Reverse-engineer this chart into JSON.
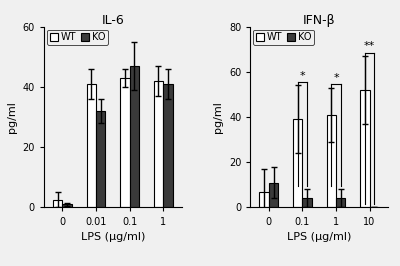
{
  "il6": {
    "title": "IL-6",
    "xlabel": "LPS (μg/ml)",
    "ylabel": "pg/ml",
    "xtick_labels": [
      "0",
      "0.01",
      "0.1",
      "1"
    ],
    "ylim": [
      0,
      60
    ],
    "yticks": [
      0,
      20,
      40,
      60
    ],
    "wt_values": [
      2.5,
      41,
      43,
      42
    ],
    "ko_values": [
      1.0,
      32,
      47,
      41
    ],
    "wt_errors": [
      2.5,
      5,
      3,
      5
    ],
    "ko_errors": [
      0.5,
      4,
      8,
      5
    ],
    "significance": []
  },
  "ifnb": {
    "title": "IFN-β",
    "xlabel": "LPS (μg/ml)",
    "ylabel": "pg/ml",
    "xtick_labels": [
      "0",
      "0.1",
      "1",
      "10"
    ],
    "ylim": [
      0,
      80
    ],
    "yticks": [
      0,
      20,
      40,
      60,
      80
    ],
    "wt_values": [
      7,
      39,
      41,
      52
    ],
    "ko_values": [
      11,
      4,
      4,
      0
    ],
    "wt_errors": [
      10,
      15,
      12,
      15
    ],
    "ko_errors": [
      7,
      4,
      4,
      0
    ],
    "significance": [
      {
        "index": 1,
        "symbol": "*"
      },
      {
        "index": 2,
        "symbol": "*"
      },
      {
        "index": 3,
        "symbol": "**"
      }
    ]
  },
  "bar_width": 0.28,
  "wt_color": "#ffffff",
  "ko_color": "#3a3a3a",
  "edge_color": "#000000",
  "capsize": 2.5,
  "error_linewidth": 1.0,
  "fig_bg": "#f0f0f0"
}
